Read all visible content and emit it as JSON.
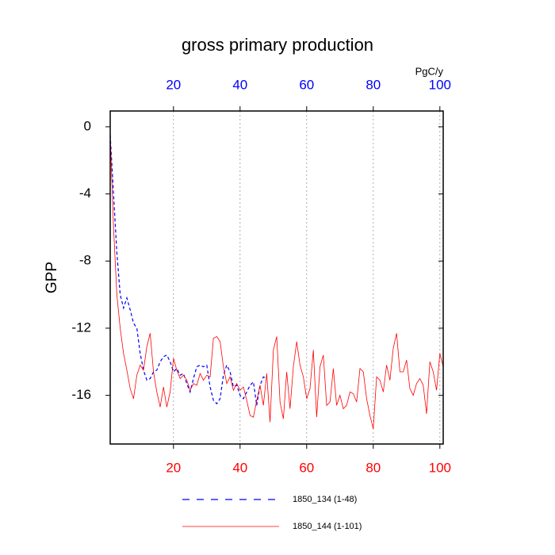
{
  "chart_data": {
    "type": "line",
    "title": "gross primary production",
    "ylabel": "GPP",
    "x2label": "PgC/y",
    "xlim": [
      1,
      101
    ],
    "ylim": [
      -18.9,
      0.94
    ],
    "xticks": [
      20,
      40,
      60,
      80,
      100
    ],
    "yticks": [
      0,
      -4,
      -8,
      -12,
      -16
    ],
    "x_tick_color": "#ff0000",
    "x2_tick_color": "#0000ff",
    "grid": "x",
    "series": [
      {
        "name": "1850_134 (1-48)",
        "color": "#0000ff",
        "dash": true,
        "x": [
          1,
          2,
          3,
          4,
          5,
          6,
          7,
          8,
          9,
          10,
          11,
          12,
          13,
          14,
          15,
          16,
          17,
          18,
          19,
          20,
          21,
          22,
          23,
          24,
          25,
          26,
          27,
          28,
          29,
          30,
          31,
          32,
          33,
          34,
          35,
          36,
          37,
          38,
          39,
          40,
          41,
          42,
          43,
          44,
          45,
          46,
          47,
          48
        ],
        "values": [
          -0.5,
          -4,
          -7.5,
          -10,
          -10.8,
          -10.2,
          -10.9,
          -11.7,
          -12,
          -13.5,
          -14.5,
          -15.1,
          -15,
          -14.6,
          -14.5,
          -14,
          -13.7,
          -13.6,
          -14,
          -14.6,
          -14.4,
          -14.8,
          -14.7,
          -15.3,
          -15.8,
          -15,
          -14.3,
          -14.2,
          -14.3,
          -14.2,
          -15.5,
          -16.3,
          -16.5,
          -16.2,
          -14.8,
          -14.2,
          -14.6,
          -15.5,
          -15.4,
          -16,
          -16.2,
          -15.8,
          -15.4,
          -15.2,
          -16.6,
          -15.4,
          -14.9,
          -15
        ]
      },
      {
        "name": "1850_144 (1-101)",
        "color": "#ff0000",
        "dash": false,
        "x": [
          1,
          2,
          3,
          4,
          5,
          6,
          7,
          8,
          9,
          10,
          11,
          12,
          13,
          14,
          15,
          16,
          17,
          18,
          19,
          20,
          21,
          22,
          23,
          24,
          25,
          26,
          27,
          28,
          29,
          30,
          31,
          32,
          33,
          34,
          35,
          36,
          37,
          38,
          39,
          40,
          41,
          42,
          43,
          44,
          45,
          46,
          47,
          48,
          49,
          50,
          51,
          52,
          53,
          54,
          55,
          56,
          57,
          58,
          59,
          60,
          61,
          62,
          63,
          64,
          65,
          66,
          67,
          68,
          69,
          70,
          71,
          72,
          73,
          74,
          75,
          76,
          77,
          78,
          79,
          80,
          81,
          82,
          83,
          84,
          85,
          86,
          87,
          88,
          89,
          90,
          91,
          92,
          93,
          94,
          95,
          96,
          97,
          98,
          99,
          100,
          101
        ],
        "values": [
          -0.5,
          -6,
          -10,
          -12,
          -13.5,
          -14.5,
          -15.6,
          -16.2,
          -14.8,
          -14.2,
          -14.5,
          -13.1,
          -12.3,
          -14.6,
          -15.8,
          -16.7,
          -15.5,
          -16.7,
          -15.8,
          -13.8,
          -14.5,
          -15,
          -14.8,
          -15.1,
          -15.7,
          -15.3,
          -15.4,
          -14.7,
          -15.1,
          -14.8,
          -14.9,
          -12.6,
          -12.5,
          -12.8,
          -14.3,
          -15.3,
          -14.9,
          -15.7,
          -15.3,
          -15.7,
          -15.5,
          -16.3,
          -17.2,
          -17.3,
          -16.3,
          -15.4,
          -16.6,
          -14.7,
          -17.6,
          -13.3,
          -12.5,
          -16.4,
          -17.4,
          -14.6,
          -16.8,
          -14.3,
          -12.8,
          -14.2,
          -14.9,
          -16.2,
          -15.6,
          -13.3,
          -17.3,
          -14.3,
          -13.6,
          -16.6,
          -16.4,
          -14.4,
          -16.6,
          -16,
          -16.8,
          -16.6,
          -15.8,
          -15.9,
          -16.4,
          -14.4,
          -14.6,
          -16.2,
          -17.2,
          -18,
          -14.9,
          -15.1,
          -15.8,
          -14.2,
          -15.1,
          -13.2,
          -12.3,
          -14.6,
          -14.6,
          -13.9,
          -15.6,
          -16,
          -15.3,
          -15,
          -15.4,
          -17.1,
          -14,
          -14.6,
          -15.7,
          -13.5,
          -14.3
        ]
      }
    ]
  }
}
